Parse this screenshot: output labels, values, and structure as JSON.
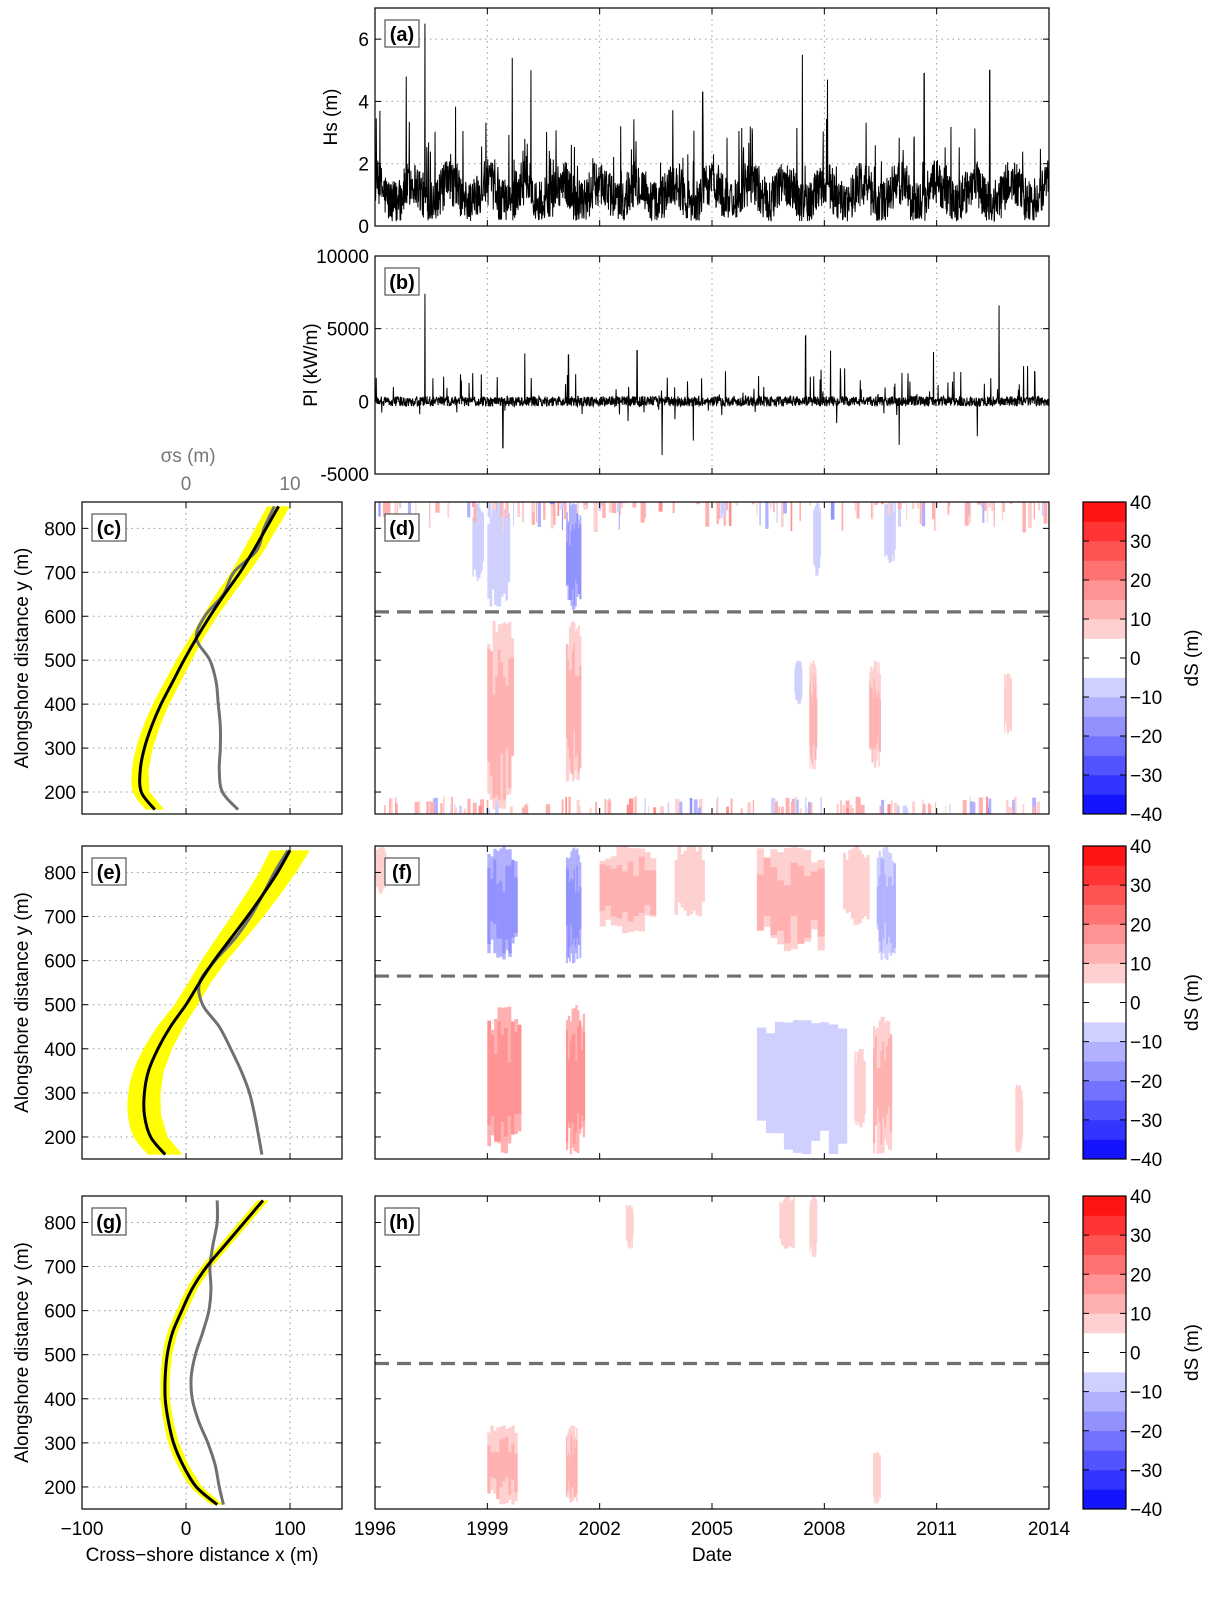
{
  "figure": {
    "date_axis_label": "Date",
    "cross_shore_label": "Cross−shore distance x (m)",
    "alongshore_label": "Alongshore distance y (m)",
    "sigma_label": "σs (m)",
    "colorbar_label": "dS (m)"
  },
  "colors": {
    "black_line": "#000000",
    "grey_line": "#707070",
    "envelope": "#ffff00",
    "dashed": "#707070",
    "red_end": "#ff0000",
    "blue_end": "#0000ff"
  },
  "chart_data": [
    {
      "id": "a",
      "panel_label": "(a)",
      "type": "line",
      "ylabel": "Hs (m)",
      "xlim": [
        "1996-01-01",
        "2014-01-01"
      ],
      "ylim": [
        0,
        7
      ],
      "x_ticks": [
        "1996",
        "1999",
        "2002",
        "2005",
        "2008",
        "2011",
        "2014"
      ],
      "y_ticks": [
        0,
        2,
        4,
        6
      ],
      "baseline_range": [
        0.3,
        2.2
      ],
      "peaks": [
        {
          "date": "1997-05",
          "value": 6.5
        },
        {
          "date": "1996-11",
          "value": 4.8
        },
        {
          "date": "1999-09",
          "value": 5.4
        },
        {
          "date": "2007-06",
          "value": 5.5
        },
        {
          "date": "2000-03",
          "value": 5.0
        },
        {
          "date": "2012-06",
          "value": 5.0
        },
        {
          "date": "2010-09",
          "value": 4.9
        },
        {
          "date": "2004-10",
          "value": 4.3
        },
        {
          "date": "2008-02",
          "value": 4.7
        }
      ],
      "grid": true
    },
    {
      "id": "b",
      "panel_label": "(b)",
      "type": "line",
      "ylabel": "Pl (kW/m)",
      "xlim": [
        "1996-01-01",
        "2014-01-01"
      ],
      "ylim": [
        -5000,
        10000
      ],
      "y_ticks": [
        -5000,
        0,
        5000,
        10000
      ],
      "peaks": [
        {
          "date": "1997-05",
          "value": 7400
        },
        {
          "date": "2012-09",
          "value": 6600
        },
        {
          "date": "2001-03",
          "value": 3200
        },
        {
          "date": "2003-01",
          "value": 3500
        },
        {
          "date": "2007-07",
          "value": 4500
        },
        {
          "date": "2008-03",
          "value": 3500
        },
        {
          "date": "2000-01",
          "value": 3300
        },
        {
          "date": "2010-12",
          "value": 3400
        },
        {
          "date": "1999-06",
          "value": -3200
        },
        {
          "date": "2003-09",
          "value": -3700
        },
        {
          "date": "2004-07",
          "value": -2700
        },
        {
          "date": "2010-01",
          "value": -3000
        },
        {
          "date": "2012-02",
          "value": -2400
        }
      ],
      "grid": true
    },
    {
      "id": "c",
      "panel_label": "(c)",
      "type": "line",
      "xlabel": "",
      "ylabel": "Alongshore distance y (m)",
      "xlim": [
        -100,
        150
      ],
      "ylim": [
        150,
        860
      ],
      "y_ticks": [
        200,
        300,
        400,
        500,
        600,
        700,
        800
      ],
      "top_axis": {
        "label": "σs (m)",
        "ticks": [
          0,
          10
        ]
      },
      "series": [
        {
          "role": "mean",
          "y": [
            160,
            200,
            250,
            300,
            350,
            400,
            450,
            500,
            550,
            600,
            650,
            700,
            750,
            800,
            850
          ],
          "x": [
            -30,
            -43,
            -44,
            -40,
            -33,
            -24,
            -13,
            -2,
            10,
            23,
            37,
            52,
            65,
            77,
            89
          ]
        },
        {
          "role": "sigma",
          "y": [
            160,
            200,
            250,
            300,
            350,
            400,
            450,
            500,
            550,
            600,
            650,
            700,
            750,
            800,
            850
          ],
          "x": [
            5,
            3.5,
            3.2,
            3.3,
            3.3,
            3.1,
            2.9,
            2.3,
            1.0,
            1.8,
            3.6,
            4.6,
            6.8,
            7.5,
            8.5
          ]
        }
      ],
      "envelope_width": 10
    },
    {
      "id": "d",
      "panel_label": "(d)",
      "type": "heatmap",
      "xlim": [
        "1996-01-01",
        "2014-01-01"
      ],
      "ylim": [
        150,
        860
      ],
      "clim": [
        -40,
        40
      ],
      "dashed_y": 610,
      "events": [
        {
          "t0": 1999.0,
          "t1": 1999.6,
          "v": -8,
          "y0": 620,
          "y1": 860
        },
        {
          "t0": 2001.1,
          "t1": 2001.5,
          "v": -14,
          "y0": 610,
          "y1": 860
        },
        {
          "t0": 1999.0,
          "t1": 1999.7,
          "v": 10,
          "y0": 160,
          "y1": 590
        },
        {
          "t0": 2001.1,
          "t1": 2001.5,
          "v": 11,
          "y0": 220,
          "y1": 590
        },
        {
          "t0": 2007.6,
          "t1": 2007.8,
          "v": 9,
          "y0": 250,
          "y1": 500
        },
        {
          "t0": 2009.2,
          "t1": 2009.5,
          "v": 9,
          "y0": 250,
          "y1": 500
        },
        {
          "t0": 2012.8,
          "t1": 2013.0,
          "v": 8,
          "y0": 330,
          "y1": 470
        },
        {
          "t0": 2007.2,
          "t1": 2007.4,
          "v": -7,
          "y0": 400,
          "y1": 500
        },
        {
          "t0": 1998.6,
          "t1": 1998.9,
          "v": -7,
          "y0": 680,
          "y1": 860
        },
        {
          "t0": 2007.7,
          "t1": 2007.9,
          "v": -8,
          "y0": 690,
          "y1": 860
        },
        {
          "t0": 2009.6,
          "t1": 2009.9,
          "v": -8,
          "y0": 720,
          "y1": 860
        },
        {
          "t0": 1996.0,
          "t1": 2014.0,
          "v": 10,
          "y0": 790,
          "y1": 860,
          "pattern": "top_edge"
        },
        {
          "t0": 1996.0,
          "t1": 2014.0,
          "v": 6,
          "y0": 150,
          "y1": 190,
          "pattern": "bottom_edge"
        }
      ]
    },
    {
      "id": "e",
      "panel_label": "(e)",
      "type": "line",
      "ylabel": "Alongshore distance y (m)",
      "xlim": [
        -100,
        150
      ],
      "ylim": [
        150,
        860
      ],
      "y_ticks": [
        200,
        300,
        400,
        500,
        600,
        700,
        800
      ],
      "series": [
        {
          "role": "mean",
          "y": [
            160,
            200,
            250,
            300,
            350,
            400,
            450,
            500,
            550,
            600,
            650,
            700,
            750,
            800,
            850
          ],
          "x": [
            -20,
            -34,
            -40,
            -40,
            -36,
            -27,
            -15,
            0,
            13,
            27,
            43,
            59,
            74,
            88,
            100
          ]
        },
        {
          "role": "sigma",
          "y": [
            160,
            200,
            250,
            300,
            350,
            400,
            450,
            500,
            550,
            600,
            650,
            700,
            750,
            800,
            850
          ],
          "x": [
            7.3,
            7.0,
            6.6,
            6.1,
            5.3,
            4.3,
            3.2,
            1.6,
            1.3,
            2.8,
            4.7,
            6.2,
            7.4,
            8.5,
            9.8
          ]
        }
      ],
      "envelope_width": 16
    },
    {
      "id": "f",
      "panel_label": "(f)",
      "type": "heatmap",
      "xlim": [
        "1996-01-01",
        "2014-01-01"
      ],
      "ylim": [
        150,
        860
      ],
      "clim": [
        -40,
        40
      ],
      "dashed_y": 565,
      "events": [
        {
          "t0": 1999.0,
          "t1": 1999.8,
          "v": -14,
          "y0": 600,
          "y1": 860
        },
        {
          "t0": 2001.1,
          "t1": 2001.5,
          "v": -14,
          "y0": 590,
          "y1": 860
        },
        {
          "t0": 2002.0,
          "t1": 2003.5,
          "v": 9,
          "y0": 660,
          "y1": 860
        },
        {
          "t0": 2004.0,
          "t1": 2004.8,
          "v": 7,
          "y0": 700,
          "y1": 860
        },
        {
          "t0": 2006.2,
          "t1": 2008.0,
          "v": 10,
          "y0": 620,
          "y1": 860
        },
        {
          "t0": 2008.5,
          "t1": 2009.2,
          "v": 8,
          "y0": 680,
          "y1": 860
        },
        {
          "t0": 2009.4,
          "t1": 2009.9,
          "v": -10,
          "y0": 600,
          "y1": 860
        },
        {
          "t0": 2010.2,
          "t1": 2010.6,
          "v": 6,
          "y0": 760,
          "y1": 860
        },
        {
          "t0": 2011.3,
          "t1": 2012.0,
          "v": 6,
          "y0": 760,
          "y1": 860
        },
        {
          "t0": 1996.0,
          "t1": 1996.3,
          "v": 8,
          "y0": 750,
          "y1": 860
        },
        {
          "t0": 1999.0,
          "t1": 1999.9,
          "v": 14,
          "y0": 160,
          "y1": 500
        },
        {
          "t0": 2001.1,
          "t1": 2001.6,
          "v": 14,
          "y0": 160,
          "y1": 500
        },
        {
          "t0": 2002.5,
          "t1": 2003.2,
          "v": -6,
          "y0": 160,
          "y1": 450
        },
        {
          "t0": 2004.0,
          "t1": 2004.5,
          "v": -5,
          "y0": 160,
          "y1": 420
        },
        {
          "t0": 2005.0,
          "t1": 2005.4,
          "v": -5,
          "y0": 160,
          "y1": 400
        },
        {
          "t0": 2006.2,
          "t1": 2008.6,
          "v": -7,
          "y0": 160,
          "y1": 470
        },
        {
          "t0": 2008.8,
          "t1": 2009.1,
          "v": 7,
          "y0": 220,
          "y1": 400
        },
        {
          "t0": 2009.3,
          "t1": 2009.8,
          "v": 10,
          "y0": 160,
          "y1": 480
        },
        {
          "t0": 2012.6,
          "t1": 2012.9,
          "v": -6,
          "y0": 250,
          "y1": 430
        },
        {
          "t0": 1997.0,
          "t1": 1997.4,
          "v": -5,
          "y0": 160,
          "y1": 450
        },
        {
          "t0": 1996.0,
          "t1": 1996.2,
          "v": -5,
          "y0": 160,
          "y1": 400
        },
        {
          "t0": 2013.1,
          "t1": 2013.3,
          "v": 8,
          "y0": 160,
          "y1": 320
        }
      ]
    },
    {
      "id": "g",
      "panel_label": "(g)",
      "type": "line",
      "xlabel": "Cross−shore distance x (m)",
      "ylabel": "Alongshore distance y (m)",
      "xlim": [
        -100,
        150
      ],
      "ylim": [
        150,
        860
      ],
      "x_ticks": [
        -100,
        0,
        100
      ],
      "y_ticks": [
        200,
        300,
        400,
        500,
        600,
        700,
        800
      ],
      "series": [
        {
          "role": "mean",
          "y": [
            160,
            200,
            250,
            300,
            350,
            400,
            450,
            500,
            550,
            600,
            650,
            700,
            750,
            800,
            850
          ],
          "x": [
            30,
            10,
            -3,
            -12,
            -17,
            -20,
            -20,
            -18,
            -13,
            -4,
            6,
            20,
            38,
            56,
            74
          ]
        },
        {
          "role": "sigma",
          "y": [
            160,
            200,
            250,
            300,
            350,
            400,
            450,
            500,
            550,
            600,
            650,
            700,
            750,
            800,
            850
          ],
          "x": [
            3.6,
            3.2,
            2.8,
            2.1,
            1.2,
            0.6,
            0.5,
            0.9,
            1.6,
            2.2,
            2.4,
            2.3,
            2.6,
            3.0,
            3.0
          ]
        }
      ],
      "envelope_width": 7
    },
    {
      "id": "h",
      "panel_label": "(h)",
      "type": "heatmap",
      "xlabel": "Date",
      "xlim": [
        "1996-01-01",
        "2014-01-01"
      ],
      "ylim": [
        150,
        860
      ],
      "clim": [
        -40,
        40
      ],
      "x_ticks": [
        "1996",
        "1999",
        "2002",
        "2005",
        "2008",
        "2011",
        "2014"
      ],
      "dashed_y": 480,
      "events": [
        {
          "t0": 1999.0,
          "t1": 1999.7,
          "v": -6,
          "y0": 680,
          "y1": 860
        },
        {
          "t0": 2001.1,
          "t1": 2001.4,
          "v": -6,
          "y0": 700,
          "y1": 860
        },
        {
          "t0": 2002.7,
          "t1": 2002.9,
          "v": 8,
          "y0": 740,
          "y1": 840
        },
        {
          "t0": 2006.8,
          "t1": 2007.2,
          "v": 8,
          "y0": 740,
          "y1": 860
        },
        {
          "t0": 2007.6,
          "t1": 2007.8,
          "v": 7,
          "y0": 720,
          "y1": 860
        },
        {
          "t0": 2008.5,
          "t1": 2008.7,
          "v": -5,
          "y0": 760,
          "y1": 860
        },
        {
          "t0": 1999.0,
          "t1": 1999.8,
          "v": 10,
          "y0": 160,
          "y1": 340
        },
        {
          "t0": 2001.1,
          "t1": 2001.4,
          "v": 10,
          "y0": 160,
          "y1": 340
        },
        {
          "t0": 2009.3,
          "t1": 2009.5,
          "v": 8,
          "y0": 160,
          "y1": 280
        },
        {
          "t0": 2003.5,
          "t1": 2003.8,
          "v": -5,
          "y0": 160,
          "y1": 220
        },
        {
          "t0": 2007.6,
          "t1": 2007.8,
          "v": -5,
          "y0": 160,
          "y1": 250
        },
        {
          "t0": 2012.6,
          "t1": 2012.8,
          "v": -5,
          "y0": 160,
          "y1": 210
        }
      ]
    },
    {
      "id": "colorbar",
      "type": "colorbar",
      "label": "dS (m)",
      "range": [
        -40,
        40
      ],
      "ticks": [
        40,
        30,
        20,
        10,
        0,
        -10,
        -20,
        -30,
        -40
      ],
      "levels": 16
    }
  ]
}
